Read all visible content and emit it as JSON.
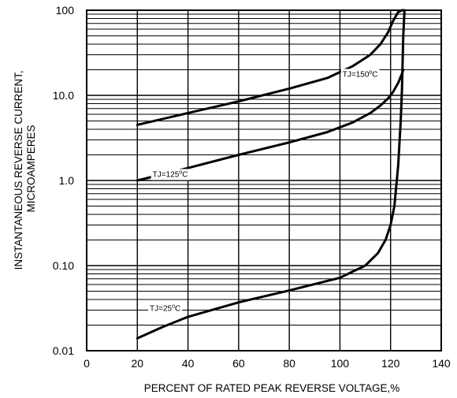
{
  "chart_data": {
    "type": "line",
    "title": "",
    "xlabel": "PERCENT OF RATED PEAK REVERSE VOLTAGE,%",
    "ylabel_lines": [
      "INSTANTANEOUS REVERSE CURRENT,",
      "MICROAMPERES"
    ],
    "x_scale": "linear",
    "y_scale": "log",
    "xlim": [
      0,
      140
    ],
    "ylim": [
      0.01,
      100
    ],
    "grid": true,
    "x_ticks": [
      0,
      20,
      40,
      60,
      80,
      100,
      120,
      140
    ],
    "x_tick_labels": [
      "0",
      "20",
      "40",
      "60",
      "80",
      "100",
      "120",
      "140"
    ],
    "y_ticks": [
      0.01,
      0.1,
      1,
      10,
      100
    ],
    "y_tick_labels": [
      "0.01",
      "0.10",
      "1.0",
      "10.0",
      "100"
    ],
    "series": [
      {
        "name": "TJ=150°C",
        "label_base": "TJ=150",
        "label_sup": "o",
        "label_unit": "C",
        "label_at": [
          108,
          18
        ],
        "x": [
          20,
          40,
          60,
          80,
          95,
          105,
          112,
          116,
          119,
          121,
          123,
          124.5,
          125
        ],
        "y": [
          4.5,
          6.2,
          8.5,
          12,
          16,
          22,
          30,
          40,
          55,
          75,
          95,
          100,
          100
        ]
      },
      {
        "name": "TJ=125°C",
        "label_base": "TJ=125",
        "label_sup": "o",
        "label_unit": "C",
        "label_at": [
          33,
          1.2
        ],
        "x": [
          20,
          40,
          60,
          80,
          95,
          105,
          112,
          116,
          119,
          121,
          123,
          124.5,
          125
        ],
        "y": [
          1.0,
          1.4,
          2.0,
          2.8,
          3.7,
          4.8,
          6.2,
          7.6,
          9.2,
          11,
          14,
          18,
          20
        ]
      },
      {
        "name": "TJ=25°C",
        "label_base": "TJ=25",
        "label_sup": "o",
        "label_unit": "C",
        "label_at": [
          31,
          0.032
        ],
        "x": [
          20,
          30,
          40,
          60,
          80,
          100,
          110,
          115,
          118,
          120,
          121.5,
          123,
          124,
          124.5,
          125,
          125.5
        ],
        "y": [
          0.014,
          0.019,
          0.025,
          0.037,
          0.051,
          0.072,
          0.1,
          0.14,
          0.2,
          0.3,
          0.5,
          1.5,
          5,
          12,
          50,
          100
        ]
      }
    ]
  }
}
